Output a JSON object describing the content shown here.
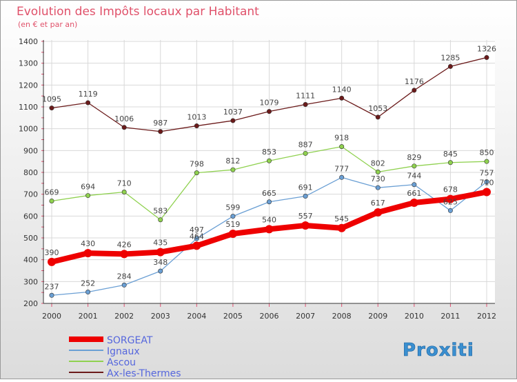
{
  "title": "Evolution des Impôts locaux par Habitant",
  "subtitle": "(en € et par an)",
  "logo_text": "Proxiti",
  "chart_data": {
    "type": "line",
    "title": "Evolution des Impôts locaux par Habitant",
    "subtitle": "(en € et par an)",
    "x": [
      "2000",
      "2001",
      "2002",
      "2003",
      "2004",
      "2005",
      "2006",
      "2007",
      "2008",
      "2009",
      "2010",
      "2011",
      "2012"
    ],
    "ylim": [
      200,
      1400
    ],
    "yticks": [
      200,
      300,
      400,
      500,
      600,
      700,
      800,
      900,
      1000,
      1100,
      1200,
      1300,
      1400
    ],
    "grid": true,
    "legend_position": "bottom-left",
    "series": [
      {
        "name": "Ax-les-Thermes",
        "color": "#6b1a1a",
        "values": [
          1095,
          1119,
          1006,
          987,
          1013,
          1037,
          1079,
          1111,
          1140,
          1053,
          1176,
          1285,
          1326
        ]
      },
      {
        "name": "Ascou",
        "color": "#8fd14f",
        "values": [
          669,
          694,
          710,
          583,
          798,
          812,
          853,
          887,
          918,
          802,
          829,
          845,
          850
        ]
      },
      {
        "name": "Ignaux",
        "color": "#6a9fd4",
        "values": [
          237,
          252,
          284,
          348,
          497,
          599,
          665,
          691,
          777,
          730,
          744,
          625,
          757
        ]
      },
      {
        "name": "SORGEAT",
        "color": "#ee0000",
        "values": [
          390,
          430,
          426,
          435,
          464,
          519,
          540,
          557,
          545,
          617,
          661,
          678,
          710
        ]
      }
    ]
  }
}
